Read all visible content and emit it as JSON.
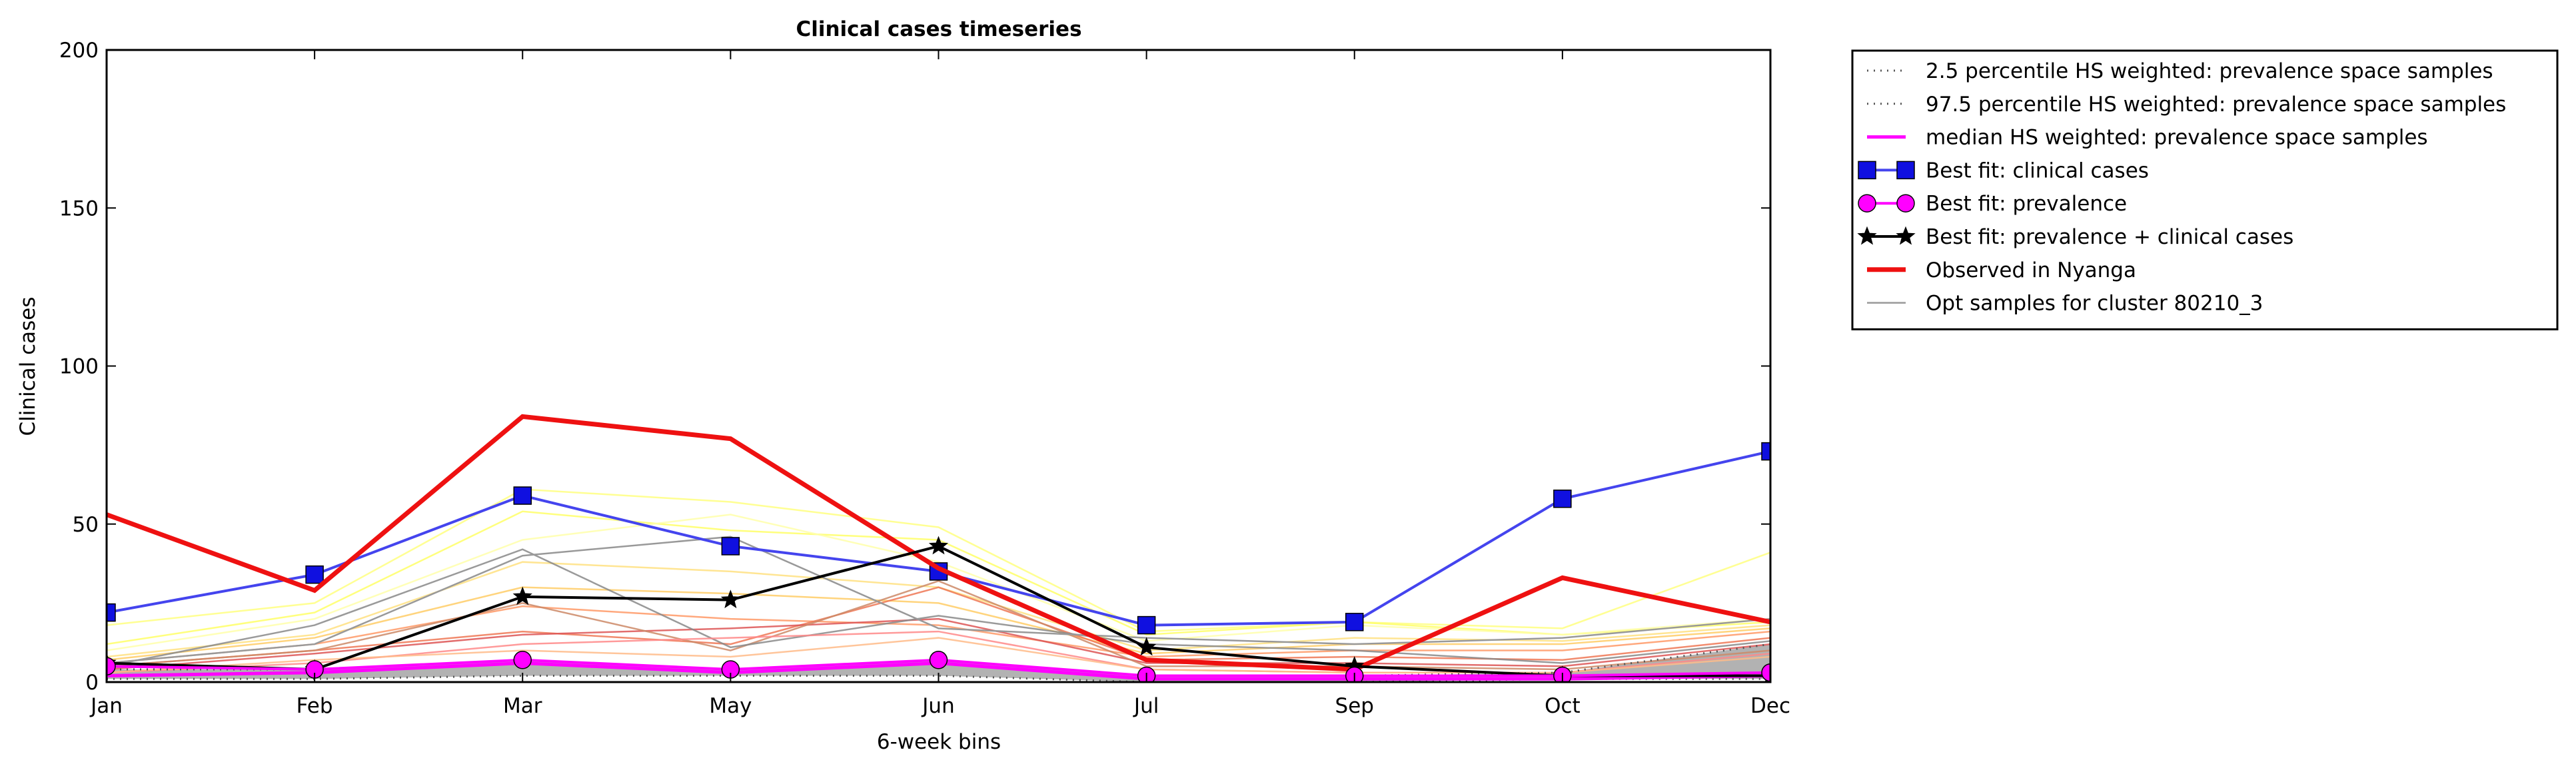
{
  "chart_data": {
    "type": "line",
    "title": "Clinical cases timeseries",
    "xlabel": "6-week bins",
    "ylabel": "Clinical cases",
    "categories": [
      "Jan",
      "Feb",
      "Mar",
      "May",
      "Jun",
      "Jul",
      "Sep",
      "Oct",
      "Dec"
    ],
    "ylim": [
      0,
      200
    ],
    "yticks": [
      0,
      50,
      100,
      150,
      200
    ],
    "grid": false,
    "legend_position": "outside-top-right",
    "series": [
      {
        "name": "2.5 percentile HS weighted: prevalence space samples",
        "style": "dotted",
        "color": "#555555",
        "values": [
          1,
          1,
          2,
          2,
          2,
          0,
          0,
          1,
          1
        ]
      },
      {
        "name": "97.5 percentile HS weighted: prevalence space samples",
        "style": "dotted",
        "color": "#555555",
        "values": [
          4,
          4,
          7,
          4,
          7,
          2,
          2,
          3,
          12
        ]
      },
      {
        "name": "median HS weighted: prevalence space samples",
        "style": "solid",
        "color": "#ff00ff",
        "values": [
          2,
          3,
          6,
          3,
          6,
          1,
          1,
          1,
          2
        ]
      },
      {
        "name": "Best fit: clinical cases",
        "style": "solid",
        "marker": "square",
        "color": "#4444ee",
        "marker_color": "#1010e0",
        "values": [
          22,
          34,
          59,
          43,
          35,
          18,
          19,
          58,
          73
        ]
      },
      {
        "name": "Best fit: prevalence",
        "style": "solid",
        "marker": "circle",
        "color": "#ff00ff",
        "marker_color": "#ff00ff",
        "values": [
          5,
          4,
          7,
          4,
          7,
          2,
          2,
          2,
          3
        ]
      },
      {
        "name": "Best fit: prevalence + clinical cases",
        "style": "solid",
        "marker": "star",
        "color": "#000000",
        "marker_color": "#000000",
        "values": [
          6,
          4,
          27,
          26,
          43,
          11,
          5,
          2,
          2
        ]
      },
      {
        "name": "Observed in Nyanga",
        "style": "solid",
        "color": "#ee1111",
        "values": [
          53,
          29,
          84,
          77,
          36,
          7,
          4,
          33,
          19
        ]
      },
      {
        "name": "Opt samples for cluster 80210_3",
        "style": "solid",
        "color": "#999999",
        "values": [
          6,
          12,
          40,
          46,
          17,
          14,
          12,
          14,
          20
        ]
      }
    ],
    "background_samples": [
      {
        "color": "#ffff80",
        "values": [
          18,
          25,
          61,
          57,
          49,
          16,
          19,
          17,
          41
        ]
      },
      {
        "color": "#ffff66",
        "values": [
          12,
          22,
          54,
          48,
          45,
          15,
          19,
          15,
          19
        ]
      },
      {
        "color": "#ffffaa",
        "values": [
          10,
          20,
          45,
          53,
          38,
          13,
          18,
          15,
          20
        ]
      },
      {
        "color": "#ffe080",
        "values": [
          8,
          15,
          38,
          35,
          30,
          10,
          14,
          13,
          18
        ]
      },
      {
        "color": "#ffcc66",
        "values": [
          7,
          14,
          30,
          28,
          25,
          9,
          12,
          12,
          17
        ]
      },
      {
        "color": "#ff9966",
        "values": [
          6,
          12,
          24,
          20,
          18,
          8,
          10,
          10,
          16
        ]
      },
      {
        "color": "#ee7755",
        "values": [
          5,
          10,
          16,
          12,
          30,
          7,
          8,
          7,
          14
        ]
      },
      {
        "color": "#dd5555",
        "values": [
          4,
          9,
          15,
          17,
          20,
          6,
          6,
          5,
          12
        ]
      },
      {
        "color": "#cc8866",
        "values": [
          5,
          10,
          25,
          10,
          32,
          5,
          5,
          4,
          10
        ]
      },
      {
        "color": "#888888",
        "values": [
          5,
          18,
          42,
          11,
          21,
          12,
          10,
          6,
          13
        ]
      },
      {
        "color": "#ff8888",
        "values": [
          3,
          6,
          12,
          14,
          16,
          4,
          3,
          3,
          9
        ]
      },
      {
        "color": "#ffbb88",
        "values": [
          3,
          7,
          10,
          8,
          14,
          4,
          3,
          3,
          8
        ]
      }
    ],
    "shaded_band": {
      "color": "#b2b2b2",
      "lower_series": 0,
      "upper_series": 1
    }
  }
}
